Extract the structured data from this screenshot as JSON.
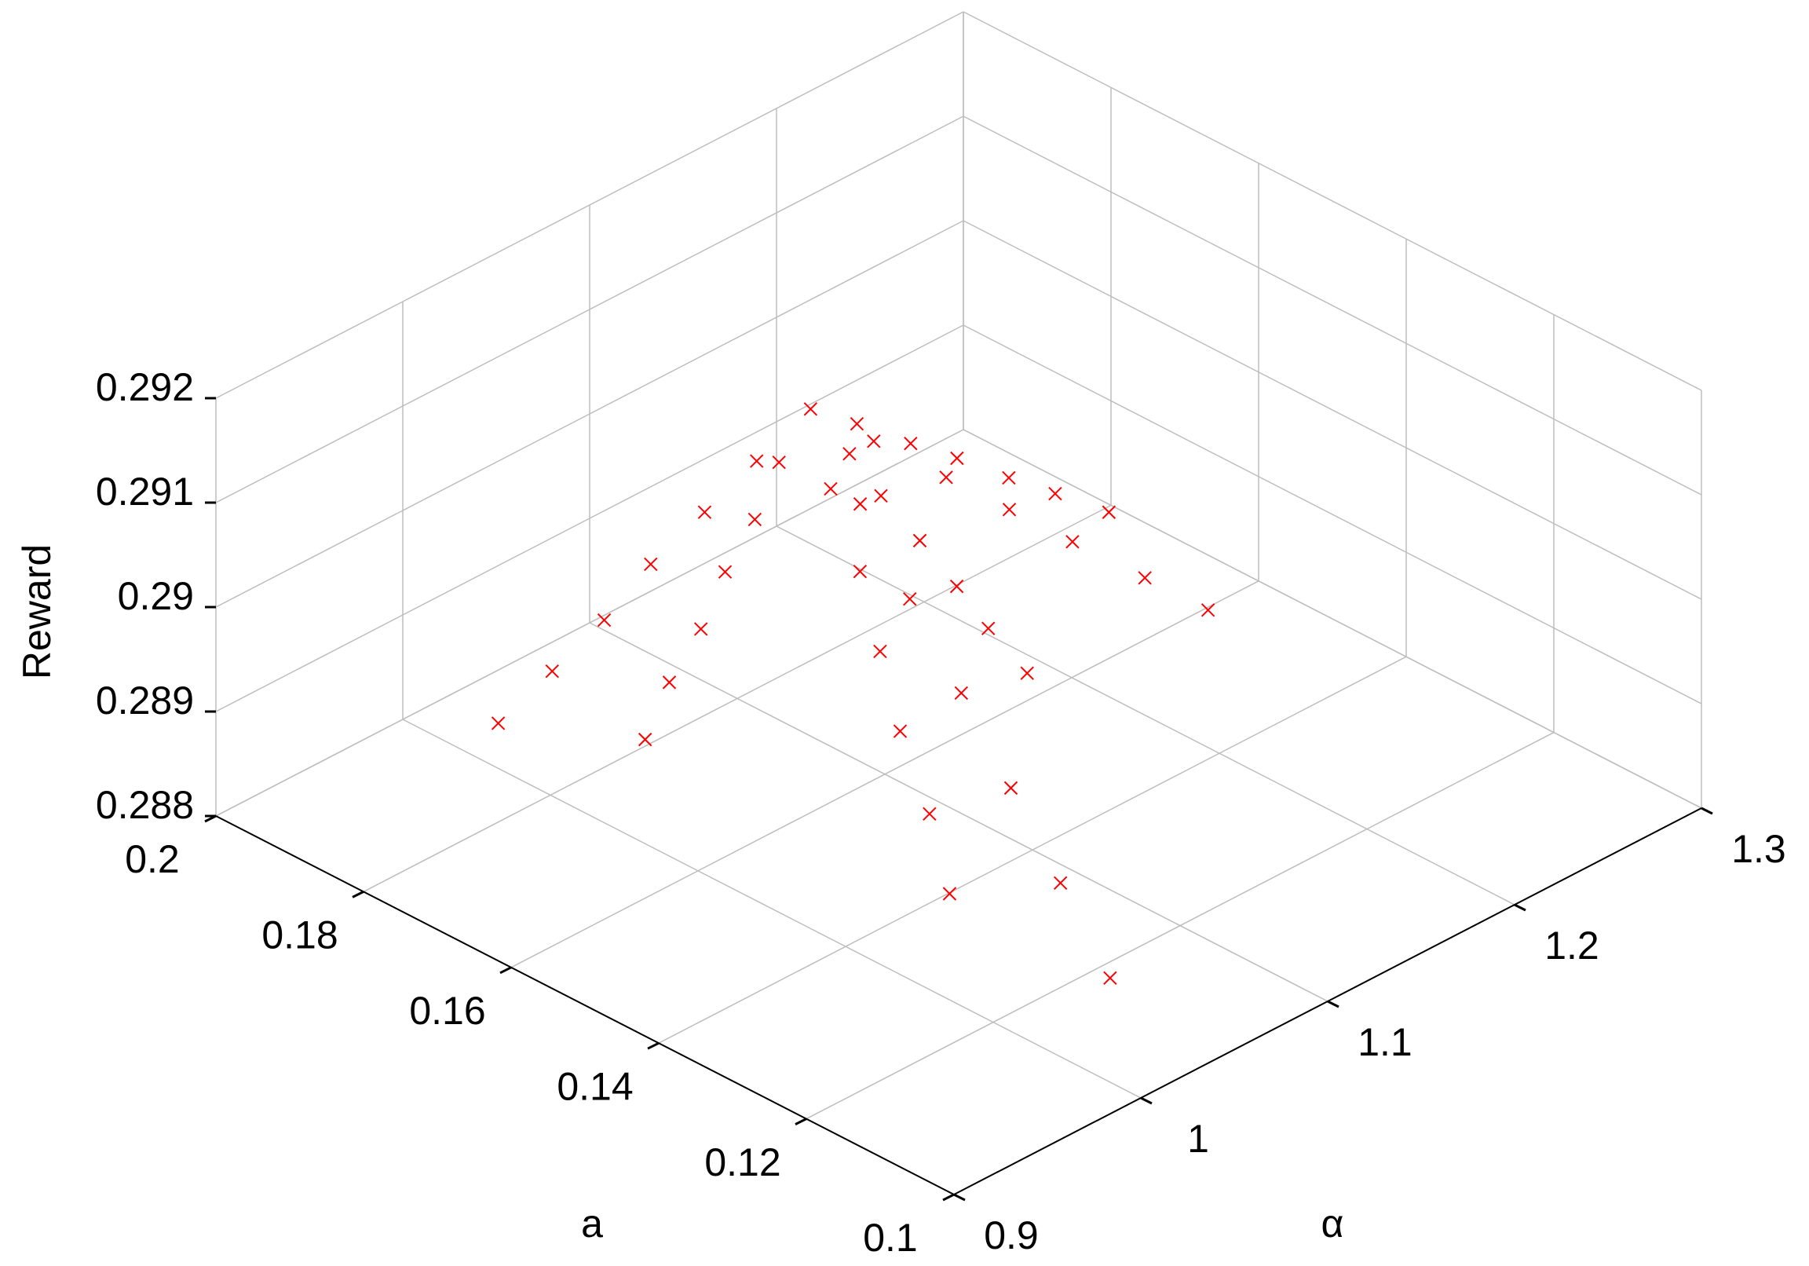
{
  "chart_data": {
    "type": "scatter3d",
    "xlabel": "α",
    "ylabel": "a",
    "zlabel": "Reward",
    "color": "#ff0000",
    "marker": "x",
    "grid": true,
    "xlim": [
      0.9,
      1.3
    ],
    "ylim": [
      0.1,
      0.2
    ],
    "zlim": [
      0.288,
      0.292
    ],
    "xticks": [
      0.9,
      1,
      1.1,
      1.2,
      1.3
    ],
    "yticks": [
      0.1,
      0.12,
      0.14,
      0.16,
      0.18,
      0.2
    ],
    "zticks": [
      0.288,
      0.289,
      0.29,
      0.291,
      0.292
    ],
    "x": [
      1.08,
      1.063,
      1.047,
      1.03,
      1.013,
      0.997,
      0.98,
      1.071,
      1.062,
      1.054,
      1.045,
      1.036,
      1.027,
      1.071,
      1.063,
      1.054,
      1.045,
      1.037,
      1.028,
      1.071,
      1.062,
      1.054,
      1.045,
      1.036,
      1.027,
      1.098,
      1.117,
      1.135,
      1.153,
      1.172,
      1.19,
      1.085,
      1.09,
      1.095,
      1.099,
      1.104,
      1.109,
      1.089,
      1.098,
      1.107,
      1.115,
      1.124,
      1.133
    ],
    "y": [
      0.165,
      0.168,
      0.171,
      0.174,
      0.176,
      0.179,
      0.182,
      0.167,
      0.168,
      0.17,
      0.171,
      0.173,
      0.174,
      0.16,
      0.154,
      0.149,
      0.144,
      0.138,
      0.133,
      0.156,
      0.147,
      0.138,
      0.129,
      0.12,
      0.111,
      0.161,
      0.156,
      0.152,
      0.148,
      0.143,
      0.139,
      0.161,
      0.158,
      0.154,
      0.15,
      0.147,
      0.143,
      0.161,
      0.156,
      0.152,
      0.147,
      0.143,
      0.138
    ],
    "z": [
      0.2915,
      0.29105,
      0.2906,
      0.29015,
      0.2897,
      0.28925,
      0.2888,
      0.291,
      0.2905,
      0.29,
      0.2895,
      0.289,
      0.2885,
      0.291,
      0.2905,
      0.29,
      0.2895,
      0.289,
      0.2885,
      0.291,
      0.2905,
      0.29,
      0.2895,
      0.289,
      0.2885,
      0.29117,
      0.29083,
      0.2905,
      0.29017,
      0.28983,
      0.2895,
      0.29117,
      0.29083,
      0.2905,
      0.29017,
      0.28983,
      0.2895,
      0.29142,
      0.29133,
      0.29125,
      0.29117,
      0.29108,
      0.291
    ]
  }
}
